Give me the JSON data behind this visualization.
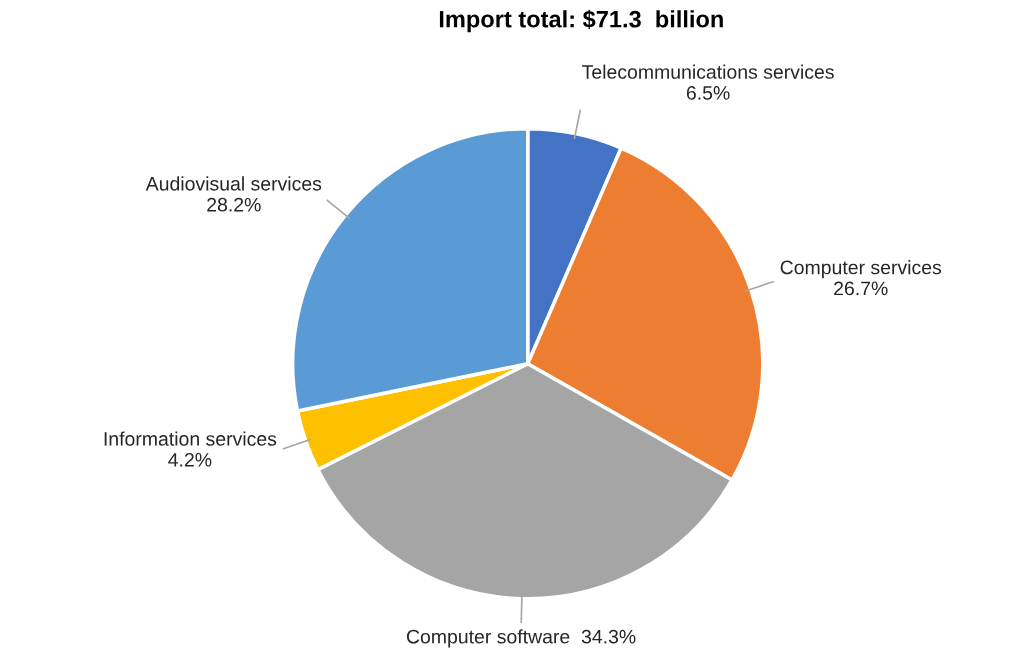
{
  "chart_data": {
    "type": "pie",
    "title": "Import total: $71.3  billion",
    "categories": [
      "Telecommunications services",
      "Computer services",
      "Computer software",
      "Information services",
      "Audiovisual services"
    ],
    "values": [
      6.5,
      26.7,
      34.3,
      4.2,
      28.2
    ],
    "value_labels": [
      "6.5%",
      "26.7%",
      "34.3%",
      "4.2%",
      "28.2%"
    ],
    "colors": [
      "#4472c4",
      "#ed7d31",
      "#a5a5a5",
      "#ffc000",
      "#5b9bd5"
    ]
  }
}
